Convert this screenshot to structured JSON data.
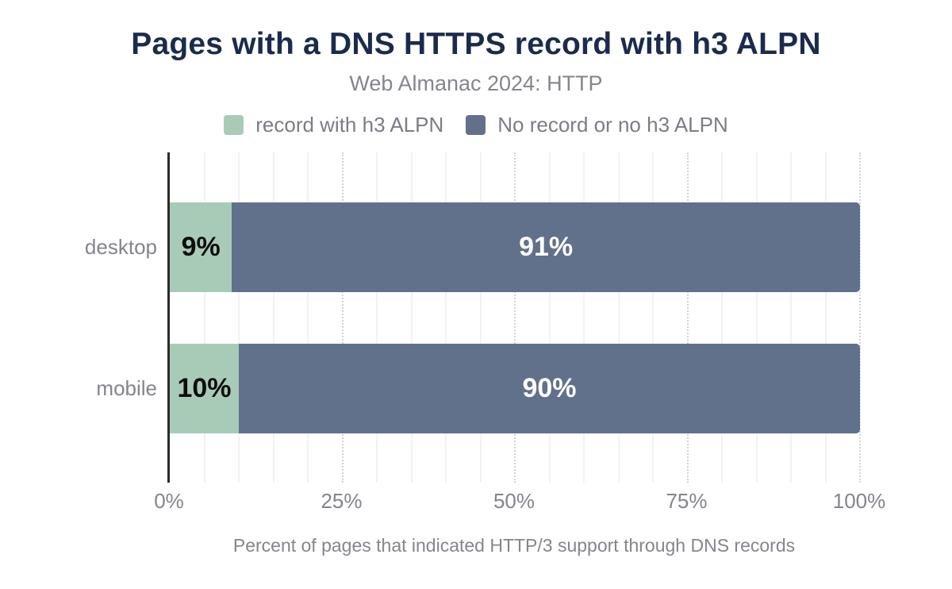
{
  "chart_data": {
    "type": "bar",
    "orientation": "horizontal",
    "stacked": true,
    "title": "Pages with a DNS HTTPS record with h3 ALPN",
    "subtitle": "Web Almanac 2024: HTTP",
    "categories": [
      "desktop",
      "mobile"
    ],
    "series": [
      {
        "name": "record with h3 ALPN",
        "values": [
          9,
          10
        ],
        "color": "#a8cbb8",
        "label_color": "#0d0d0d"
      },
      {
        "name": "No record or no h3 ALPN",
        "values": [
          91,
          90
        ],
        "color": "#61718b",
        "label_color": "#ffffff"
      }
    ],
    "value_labels": [
      [
        "9%",
        "91%"
      ],
      [
        "10%",
        "90%"
      ]
    ],
    "xlabel": "Percent of pages that indicated HTTP/3 support through DNS records",
    "xlim": [
      0,
      100
    ],
    "x_ticks": [
      {
        "label": "0%",
        "value": 0
      },
      {
        "label": "25%",
        "value": 25
      },
      {
        "label": "50%",
        "value": 50
      },
      {
        "label": "75%",
        "value": 75
      },
      {
        "label": "100%",
        "value": 100
      }
    ],
    "grid": {
      "minor_every_pct": 5,
      "major_every_pct": 25
    },
    "legend_position": "top"
  },
  "colors": {
    "title": "#1a2b4d",
    "subtitle": "#85858d",
    "axis_text": "#84848d",
    "legend_text": "#7c7c85",
    "axis_line": "#2b2b2b",
    "minor_grid": "#f2f2f3",
    "major_grid": "#d2d2d9",
    "background": "#ffffff"
  }
}
